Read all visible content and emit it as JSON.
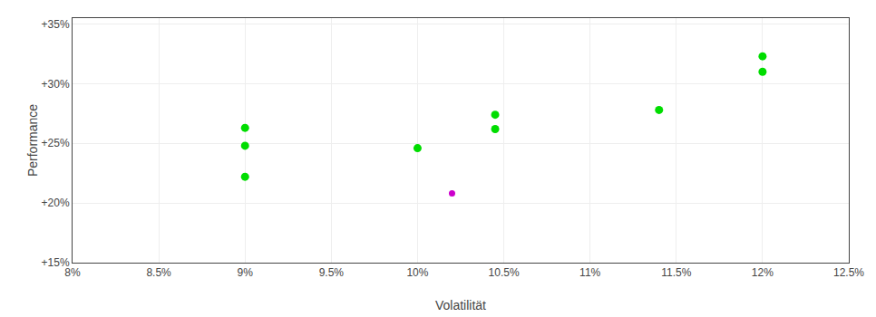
{
  "chart_data": {
    "type": "scatter",
    "xlabel": "Volatilität",
    "ylabel": "Performance",
    "marker": "circle",
    "grid": true,
    "series": [
      {
        "color": "#00dd00",
        "x": [
          0.09,
          0.09,
          0.09,
          0.1,
          0.1045,
          0.1045,
          0.114,
          0.12,
          0.12
        ],
        "values": [
          0.263,
          0.248,
          0.222,
          0.246,
          0.274,
          0.262,
          0.278,
          0.323,
          0.31
        ]
      },
      {
        "color": "#cc00cc",
        "x": [
          0.102
        ],
        "values": [
          0.208
        ]
      }
    ],
    "xlim": [
      0.08,
      0.125
    ],
    "ylim": [
      0.15,
      0.355
    ],
    "xticks": [
      {
        "value": 0.08,
        "label": "8%"
      },
      {
        "value": 0.085,
        "label": "8.5%"
      },
      {
        "value": 0.09,
        "label": "9%"
      },
      {
        "value": 0.095,
        "label": "9.5%"
      },
      {
        "value": 0.1,
        "label": "10%"
      },
      {
        "value": 0.105,
        "label": "10.5%"
      },
      {
        "value": 0.11,
        "label": "11%"
      },
      {
        "value": 0.115,
        "label": "11.5%"
      },
      {
        "value": 0.12,
        "label": "12%"
      },
      {
        "value": 0.125,
        "label": "12.5%"
      }
    ],
    "yticks": [
      {
        "value": 0.15,
        "label": "+15%"
      },
      {
        "value": 0.2,
        "label": "+20%"
      },
      {
        "value": 0.25,
        "label": "+25%"
      },
      {
        "value": 0.3,
        "label": "+30%"
      },
      {
        "value": 0.35,
        "label": "+35%"
      }
    ]
  }
}
